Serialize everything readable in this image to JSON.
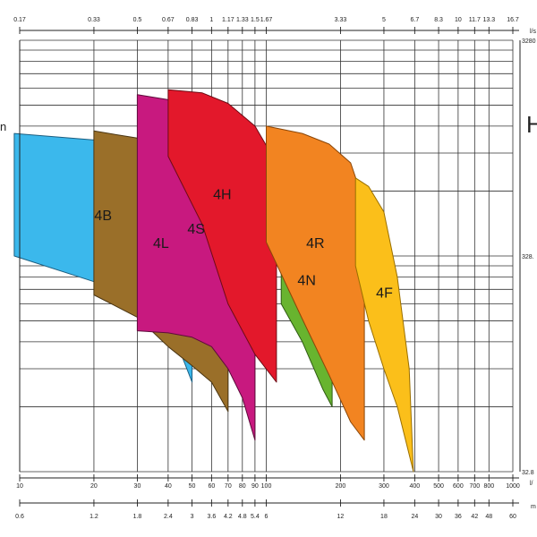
{
  "chart_data": {
    "type": "area",
    "title": "",
    "x_scale": "log",
    "y_scale": "log",
    "x_axes": {
      "top_ls": {
        "unit": "l/s",
        "ticks": [
          {
            "value": 10,
            "label": "0.17"
          },
          {
            "value": 20,
            "label": "0.33"
          },
          {
            "value": 30,
            "label": "0.5"
          },
          {
            "value": 40,
            "label": "0.67"
          },
          {
            "value": 50,
            "label": "0.83"
          },
          {
            "value": 60,
            "label": "1"
          },
          {
            "value": 70,
            "label": "1.17"
          },
          {
            "value": 80,
            "label": "1.33"
          },
          {
            "value": 90,
            "label": "1.5"
          },
          {
            "value": 100,
            "label": "1.67"
          },
          {
            "value": 200,
            "label": "3.33"
          },
          {
            "value": 300,
            "label": "5"
          },
          {
            "value": 400,
            "label": "6.7"
          },
          {
            "value": 500,
            "label": "8.3"
          },
          {
            "value": 600,
            "label": "10"
          },
          {
            "value": 700,
            "label": "11.7"
          },
          {
            "value": 800,
            "label": "13.3"
          },
          {
            "value": 1000,
            "label": "16.7"
          }
        ]
      },
      "bottom_lmin": {
        "unit": "l/",
        "ticks": [
          {
            "value": 10,
            "label": "10"
          },
          {
            "value": 20,
            "label": "20"
          },
          {
            "value": 30,
            "label": "30"
          },
          {
            "value": 40,
            "label": "40"
          },
          {
            "value": 50,
            "label": "50"
          },
          {
            "value": 60,
            "label": "60"
          },
          {
            "value": 70,
            "label": "70"
          },
          {
            "value": 80,
            "label": "80"
          },
          {
            "value": 90,
            "label": "90"
          },
          {
            "value": 100,
            "label": "100"
          },
          {
            "value": 200,
            "label": "200"
          },
          {
            "value": 300,
            "label": "300"
          },
          {
            "value": 400,
            "label": "400"
          },
          {
            "value": 500,
            "label": "500"
          },
          {
            "value": 600,
            "label": "600"
          },
          {
            "value": 700,
            "label": "700"
          },
          {
            "value": 800,
            "label": "800"
          },
          {
            "value": 1000,
            "label": "1000"
          }
        ]
      },
      "bottom_m3h": {
        "unit": "m",
        "ticks": [
          {
            "value": 10,
            "label": "0.6"
          },
          {
            "value": 20,
            "label": "1.2"
          },
          {
            "value": 30,
            "label": "1.8"
          },
          {
            "value": 40,
            "label": "2.4"
          },
          {
            "value": 50,
            "label": "3"
          },
          {
            "value": 60,
            "label": "3.6"
          },
          {
            "value": 70,
            "label": "4.2"
          },
          {
            "value": 80,
            "label": "4.8"
          },
          {
            "value": 90,
            "label": "5.4"
          },
          {
            "value": 100,
            "label": "6"
          },
          {
            "value": 200,
            "label": "12"
          },
          {
            "value": 300,
            "label": "18"
          },
          {
            "value": 400,
            "label": "24"
          },
          {
            "value": 500,
            "label": "30"
          },
          {
            "value": 600,
            "label": "36"
          },
          {
            "value": 700,
            "label": "42"
          },
          {
            "value": 800,
            "label": "48"
          },
          {
            "value": 1000,
            "label": "60"
          }
        ]
      }
    },
    "xlim": [
      10,
      1000
    ],
    "ylim": [
      10,
      1000
    ],
    "y_axis_right": {
      "ticks": [
        {
          "value": 1000,
          "label": "3280"
        },
        {
          "value": 100,
          "label": "328."
        },
        {
          "value": 10,
          "label": "32.8"
        }
      ]
    },
    "edge_labels": {
      "left": "n",
      "right": "H",
      "top_right": "l/s",
      "bottom_right": "l/",
      "bottom_far_right": "m"
    },
    "series": [
      {
        "name": "4B",
        "color": "#3bb8ec",
        "outline": "#1c5e80",
        "upper": [
          [
            9.5,
            370
          ],
          [
            20,
            345
          ],
          [
            30,
            290
          ],
          [
            40,
            215
          ],
          [
            45,
            180
          ],
          [
            50,
            130
          ]
        ],
        "lower": [
          [
            9.5,
            100
          ],
          [
            20,
            76
          ],
          [
            30,
            60
          ],
          [
            40,
            50
          ],
          [
            50,
            26
          ]
        ]
      },
      {
        "name": "4L",
        "color": "#9a6f29",
        "outline": "#4a3512",
        "upper": [
          [
            20,
            380
          ],
          [
            30,
            352
          ],
          [
            40,
            320
          ],
          [
            50,
            260
          ],
          [
            60,
            195
          ],
          [
            70,
            148
          ]
        ],
        "lower": [
          [
            20,
            66
          ],
          [
            30,
            52
          ],
          [
            40,
            38
          ],
          [
            50,
            31
          ],
          [
            60,
            26
          ],
          [
            70,
            19
          ]
        ]
      },
      {
        "name": "4S",
        "color": "#c8197f",
        "outline": "#5e0c3b",
        "upper": [
          [
            30,
            560
          ],
          [
            40,
            530
          ],
          [
            50,
            460
          ],
          [
            60,
            370
          ],
          [
            70,
            300
          ],
          [
            80,
            220
          ],
          [
            90,
            170
          ]
        ],
        "lower": [
          [
            30,
            45
          ],
          [
            40,
            44
          ],
          [
            50,
            42
          ],
          [
            60,
            38
          ],
          [
            70,
            30
          ],
          [
            80,
            22
          ],
          [
            90,
            14
          ]
        ]
      },
      {
        "name": "4H",
        "color": "#e3182b",
        "outline": "#6e0b14",
        "upper": [
          [
            40,
            590
          ],
          [
            55,
            570
          ],
          [
            70,
            510
          ],
          [
            90,
            400
          ],
          [
            110,
            270
          ]
        ],
        "lower": [
          [
            40,
            290
          ],
          [
            55,
            140
          ],
          [
            70,
            60
          ],
          [
            90,
            35
          ],
          [
            110,
            26
          ]
        ]
      },
      {
        "name": "4N",
        "color": "#68b42f",
        "outline": "#2f5a14",
        "upper": [
          [
            115,
            250
          ],
          [
            140,
            180
          ],
          [
            170,
            130
          ],
          [
            185,
            115
          ]
        ],
        "lower": [
          [
            115,
            60
          ],
          [
            140,
            40
          ],
          [
            170,
            24
          ],
          [
            185,
            20
          ]
        ]
      },
      {
        "name": "4R",
        "color": "#f28421",
        "outline": "#8a4608",
        "upper": [
          [
            100,
            400
          ],
          [
            140,
            370
          ],
          [
            180,
            330
          ],
          [
            220,
            270
          ],
          [
            250,
            175
          ]
        ],
        "lower": [
          [
            100,
            116
          ],
          [
            140,
            51
          ],
          [
            180,
            28
          ],
          [
            220,
            17
          ],
          [
            250,
            14
          ]
        ]
      },
      {
        "name": "4F",
        "color": "#fbbf1a",
        "outline": "#9a6f00",
        "upper": [
          [
            230,
            230
          ],
          [
            260,
            210
          ],
          [
            300,
            160
          ],
          [
            340,
            80
          ],
          [
            380,
            30
          ],
          [
            395,
            10
          ]
        ],
        "lower": [
          [
            230,
            90
          ],
          [
            260,
            50
          ],
          [
            300,
            30
          ],
          [
            340,
            20
          ],
          [
            380,
            12
          ],
          [
            395,
            10
          ]
        ]
      }
    ]
  }
}
